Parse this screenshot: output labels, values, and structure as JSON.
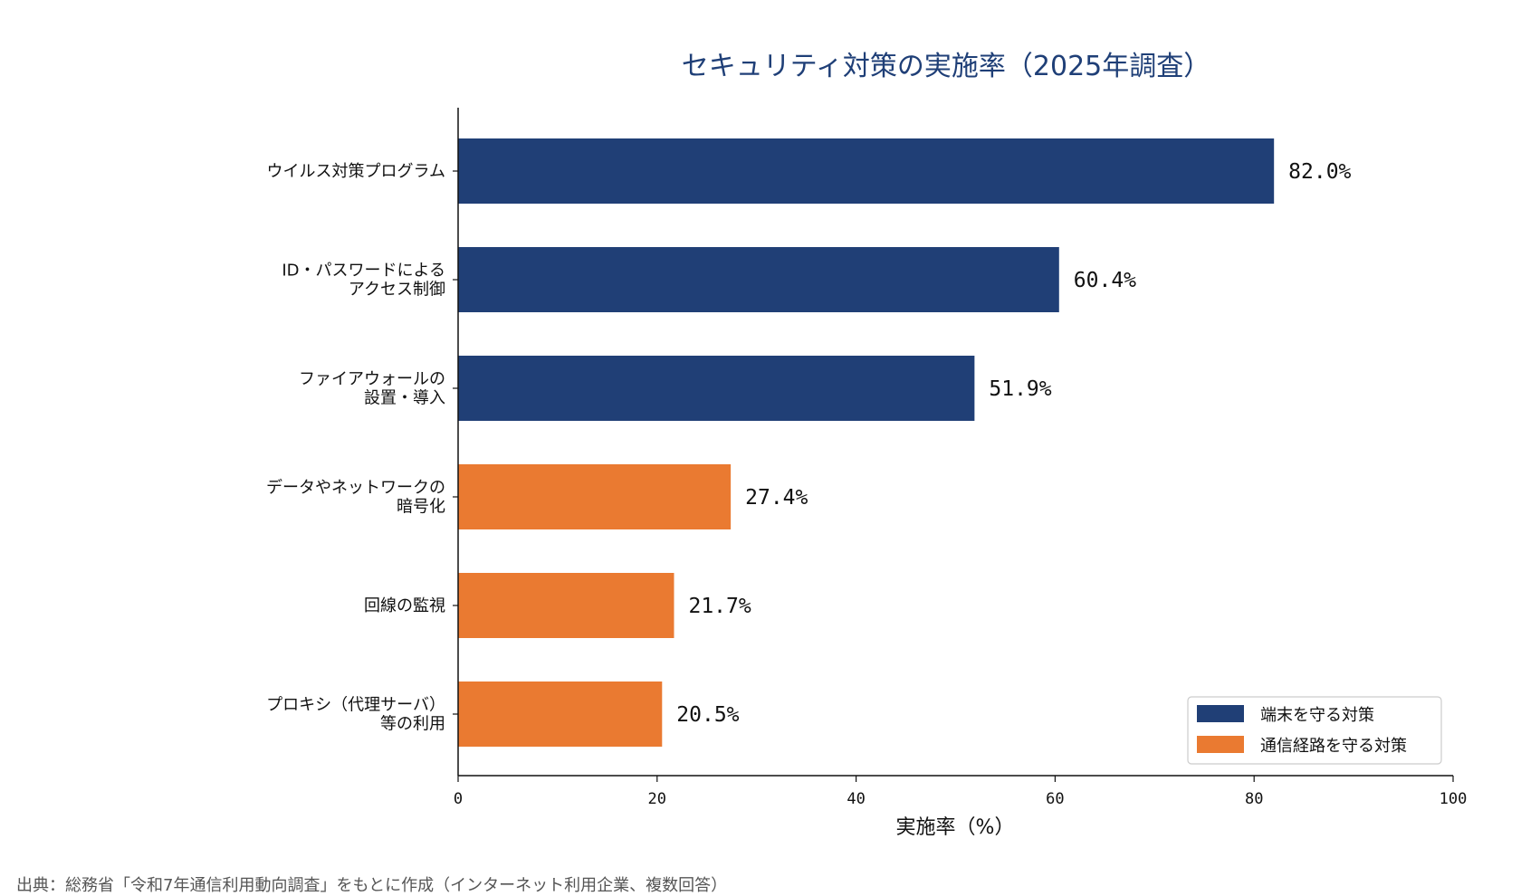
{
  "chart_data": {
    "type": "bar",
    "orientation": "horizontal",
    "title": "セキュリティ対策の実施率（2025年調査）",
    "xlabel": "実施率（%）",
    "xlim": [
      0,
      100
    ],
    "xticks": [
      "0",
      "20",
      "40",
      "60",
      "80",
      "100"
    ],
    "categories": [
      {
        "lines": [
          "ウイルス対策プログラム"
        ]
      },
      {
        "lines": [
          "ID・パスワードによる",
          "アクセス制御"
        ]
      },
      {
        "lines": [
          "ファイアウォールの",
          "設置・導入"
        ]
      },
      {
        "lines": [
          "データやネットワークの",
          "暗号化"
        ]
      },
      {
        "lines": [
          "回線の監視"
        ]
      },
      {
        "lines": [
          "プロキシ（代理サーバ）",
          "等の利用"
        ]
      }
    ],
    "values": [
      82.0,
      60.4,
      51.9,
      27.4,
      21.7,
      20.5
    ],
    "value_labels": [
      "82.0%",
      "60.4%",
      "51.9%",
      "27.4%",
      "21.7%",
      "20.5%"
    ],
    "groups": [
      0,
      0,
      0,
      1,
      1,
      1
    ],
    "series": [
      {
        "name": "端末を守る対策",
        "color": "#203f76"
      },
      {
        "name": "通信経路を守る対策",
        "color": "#ea7a31"
      }
    ],
    "legend_position": "bottom-right",
    "grid": false,
    "source": "出典：総務省「令和7年通信利用動向調査」をもとに作成（インターネット利用企業、複数回答）"
  }
}
